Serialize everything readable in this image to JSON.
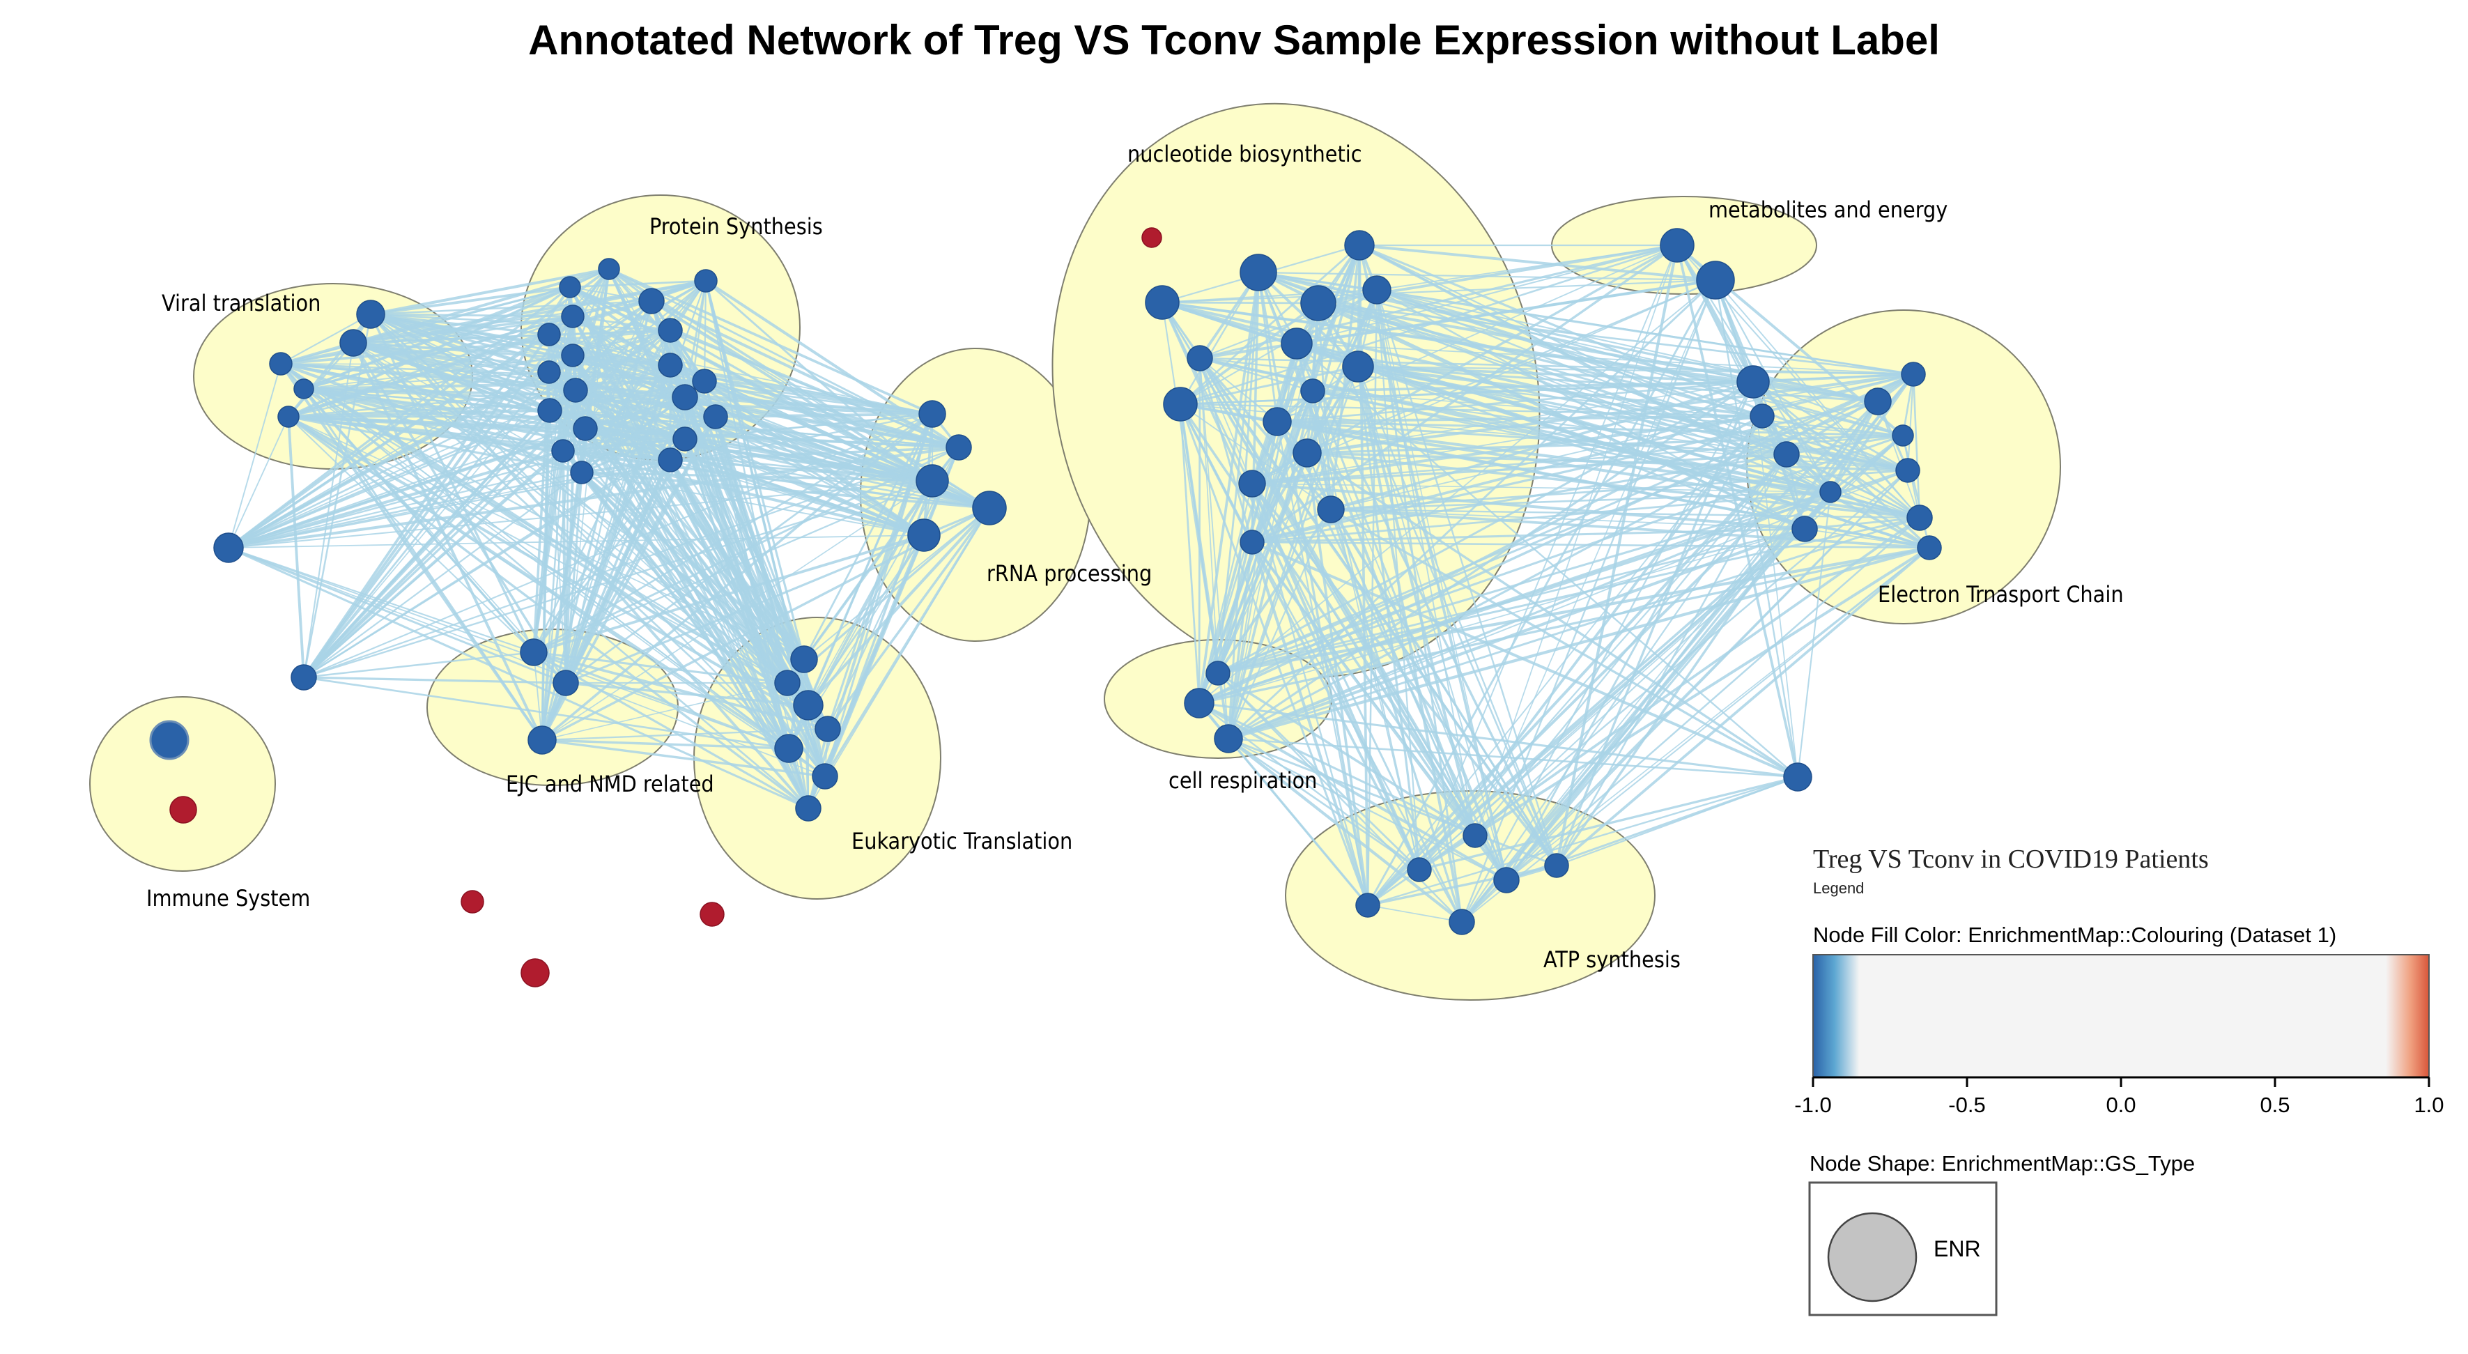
{
  "title": "Annotated Network of Treg VS Tconv Sample Expression without Label",
  "colors": {
    "node_blue": "#2a62a8",
    "node_red": "#b01c2e",
    "edge": "#a9d3e6",
    "cluster_fill": "#fdfdc9",
    "cluster_stroke": "#7e7e6e",
    "gradient_low": "#2a62a8",
    "gradient_mid": "#f4f4f4",
    "gradient_high": "#d9563a"
  },
  "clusters": [
    {
      "name": "viral-translation",
      "label": "Viral translation"
    },
    {
      "name": "protein-synthesis",
      "label": "Protein Synthesis"
    },
    {
      "name": "rrna-processing",
      "label": "rRNA processing"
    },
    {
      "name": "ejc-nmd",
      "label": "EJC and NMD related"
    },
    {
      "name": "eukaryotic-translation",
      "label": "Eukaryotic Translation"
    },
    {
      "name": "immune-system",
      "label": "Immune System"
    },
    {
      "name": "nucleotide-biosynthetic",
      "label": "nucleotide biosynthetic"
    },
    {
      "name": "metabolites-energy",
      "label": "metabolites and energy"
    },
    {
      "name": "electron-transport",
      "label": "Electron Trnasport Chain"
    },
    {
      "name": "cell-respiration",
      "label": "cell respiration"
    },
    {
      "name": "atp-synthesis",
      "label": "ATP synthesis"
    }
  ],
  "legend": {
    "header": "Treg VS Tconv in COVID19 Patients",
    "subheader": "Legend",
    "fill_title": "Node Fill Color:  EnrichmentMap::Colouring (Dataset 1)",
    "fill_ticks": [
      "-1.0",
      "-0.5",
      "0.0",
      "0.5",
      "1.0"
    ],
    "shape_title": "Node Shape:  EnrichmentMap::GS_Type",
    "shape_label": "ENR"
  }
}
